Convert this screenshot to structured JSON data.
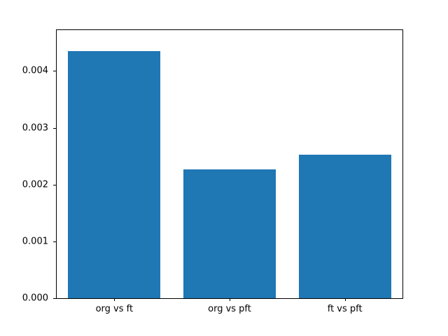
{
  "chart_data": {
    "type": "bar",
    "title": "",
    "xlabel": "",
    "ylabel": "",
    "categories": [
      "org vs ft",
      "org vs pft",
      "ft vs pft"
    ],
    "values": [
      0.00435,
      0.00227,
      0.00253
    ],
    "ylim": [
      0,
      0.00472
    ],
    "yticks": [
      0,
      0.001,
      0.002,
      0.003,
      0.004
    ],
    "ytick_labels": [
      "0.000",
      "0.001",
      "0.002",
      "0.003",
      "0.004"
    ],
    "grid": false,
    "legend": null,
    "bar_color": "#1f77b4"
  },
  "colors": {
    "bar": "#1f77b4",
    "background": "#ffffff",
    "axis": "#000000"
  }
}
